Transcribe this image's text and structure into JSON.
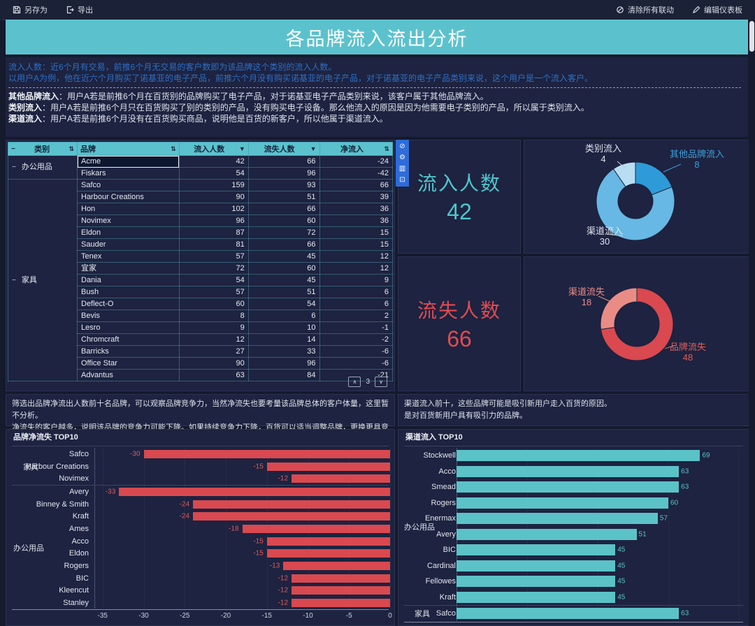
{
  "toolbar": {
    "save_as": "另存为",
    "export": "导出",
    "clear_linkage": "清除所有联动",
    "edit_dashboard": "编辑仪表板"
  },
  "banner": {
    "title": "各品牌流入流出分析"
  },
  "description": {
    "blue_lines": [
      "流入人数：近6个月有交易，前推6个月无交易的客户数即为该品牌这个类别的流入人数。",
      "以用户A为例，他在近六个月购买了诺基亚的电子产品，前推六个月没有购买诺基亚的电子产品，对于诺基亚的电子产品类别来说，这个用户是一个流入客户。"
    ],
    "definitions": [
      {
        "term": "其他品牌流入",
        "text": "：用户A若是前推6个月在百货别的品牌购买了电子产品，对于诺基亚电子产品类别来说，该客户属于其他品牌流入。"
      },
      {
        "term": "类别流入",
        "text": "：用户A若是前推6个月只在百货购买了别的类别的产品，没有购买电子设备。那么他流入的原因是因为他需要电子类别的产品，所以属于类别流入。"
      },
      {
        "term": "渠道流入",
        "text": "：用户A若是前推6个月没有在百货购买商品，说明他是百货的新客户，所以他属于渠道流入。"
      }
    ]
  },
  "icons": {
    "sort": "⇅",
    "filter": "▼",
    "collapse": "−",
    "page_up": "∧",
    "page_down": "∨"
  },
  "widget_toolbar": {
    "icons": [
      {
        "name": "no-link-icon",
        "glyph": "⊘"
      },
      {
        "name": "gear-icon",
        "glyph": "⚙"
      },
      {
        "name": "data-columns-icon",
        "glyph": "▥"
      },
      {
        "name": "collapse-box-icon",
        "glyph": "⊡"
      }
    ]
  },
  "table": {
    "headers": [
      "类别",
      "品牌",
      "流入人数",
      "流失人数",
      "净流入"
    ],
    "selected_cell": "Acme",
    "pagination": {
      "page": "3"
    },
    "groups": [
      {
        "name": "办公用品",
        "rows": [
          [
            "Acme",
            42,
            66,
            -24
          ],
          [
            "Fiskars",
            54,
            96,
            -42
          ]
        ]
      },
      {
        "name": "家具",
        "rows": [
          [
            "Safco",
            159,
            93,
            66
          ],
          [
            "Harbour Creations",
            90,
            51,
            39
          ],
          [
            "Hon",
            102,
            66,
            36
          ],
          [
            "Novimex",
            96,
            60,
            36
          ],
          [
            "Eldon",
            87,
            72,
            15
          ],
          [
            "Sauder",
            81,
            66,
            15
          ],
          [
            "Tenex",
            57,
            45,
            12
          ],
          [
            "宜家",
            72,
            60,
            12
          ],
          [
            "Dania",
            54,
            45,
            9
          ],
          [
            "Bush",
            57,
            51,
            6
          ],
          [
            "Deflect-O",
            60,
            54,
            6
          ],
          [
            "Bevis",
            8,
            6,
            2
          ],
          [
            "Lesro",
            9,
            10,
            -1
          ],
          [
            "Chromcraft",
            12,
            14,
            -2
          ],
          [
            "Barricks",
            27,
            33,
            -6
          ],
          [
            "Office Star",
            90,
            96,
            -6
          ],
          [
            "Advantus",
            63,
            84,
            -21
          ]
        ]
      }
    ]
  },
  "kpi": {
    "inflow": {
      "label": "流入人数",
      "value": "42",
      "color": "#4fc6cd"
    },
    "outflow": {
      "label": "流失人数",
      "value": "66",
      "color": "#e24b50"
    }
  },
  "notes": {
    "left": [
      "筛选出品牌净流出人数前十名品牌，可以观察品牌竞争力，当然净流失也要考量该品牌总体的客户体量，这里暂不分析。",
      "净流失的客户越多，说明该品牌的竞争力可能下降。如果持续竞争力下降，百货可以适当调整品牌，更换更具竞争力的品牌。"
    ],
    "right": [
      "渠道流入前十，这些品牌可能是吸引新用户走入百货的原因。",
      "是对百货新用户具有吸引力的品牌。"
    ]
  },
  "colors": {
    "accent_teal": "#5bc2cd",
    "negative_red": "#d9494f",
    "link_blue": "#2e6fc4",
    "widget_toolbar_blue": "#2e6cd9"
  },
  "chart_data": [
    {
      "type": "pie",
      "name": "inflow-breakdown-donut",
      "total": 42,
      "start": "top, clockwise",
      "legend_position": "none",
      "segments": [
        {
          "label": "其他品牌流入",
          "value": 8,
          "color": "#2e9bd8",
          "label_color": "#3aa0dc"
        },
        {
          "label": "渠道流入",
          "value": 30,
          "color": "#67b8e4",
          "label_color": "#dfe3ec"
        },
        {
          "label": "类别流入",
          "value": 4,
          "color": "#b9ddf1",
          "label_color": "#dfe3ec"
        }
      ]
    },
    {
      "type": "pie",
      "name": "loss-breakdown-donut",
      "total": 66,
      "start": "top, clockwise",
      "legend_position": "none",
      "segments": [
        {
          "label": "品牌流失",
          "value": 48,
          "color": "#d9494f",
          "label_color": "#de5f5c"
        },
        {
          "label": "渠道流失",
          "value": 18,
          "color": "#ea8c86",
          "label_color": "#ea8c86"
        }
      ]
    },
    {
      "type": "bar",
      "orientation": "horizontal",
      "title": "品牌净流失 TOP10",
      "xlim": [
        -35,
        0
      ],
      "ticks": [
        -35,
        -30,
        -25,
        -20,
        -15,
        -10,
        -5,
        0
      ],
      "grid": "on",
      "bar_color": "#d9494f",
      "value_color": "#e05b5b",
      "groups": [
        {
          "name": "家具",
          "rows": [
            {
              "label": "Safco",
              "value": -30
            },
            {
              "label": "Harbour Creations",
              "value": -15
            },
            {
              "label": "Novimex",
              "value": -12
            }
          ]
        },
        {
          "name": "办公用品",
          "rows": [
            {
              "label": "Avery",
              "value": -33
            },
            {
              "label": "Binney & Smith",
              "value": -24
            },
            {
              "label": "Kraft",
              "value": -24
            },
            {
              "label": "Ames",
              "value": -18
            },
            {
              "label": "Acco",
              "value": -15
            },
            {
              "label": "Eldon",
              "value": -15
            },
            {
              "label": "Rogers",
              "value": -13
            },
            {
              "label": "BIC",
              "value": -12
            },
            {
              "label": "Kleencut",
              "value": -12
            },
            {
              "label": "Stanley",
              "value": -12
            }
          ]
        }
      ]
    },
    {
      "type": "bar",
      "orientation": "horizontal",
      "title": "渠道流入 TOP10",
      "xlim": [
        0,
        80
      ],
      "ticks": [],
      "grid": "on",
      "bar_color": "#5bc2c8",
      "value_color": "#5bc2c8",
      "groups": [
        {
          "name": "办公用品",
          "rows": [
            {
              "label": "Stockwell",
              "value": 69
            },
            {
              "label": "Acco",
              "value": 63
            },
            {
              "label": "Smead",
              "value": 63
            },
            {
              "label": "Rogers",
              "value": 60
            },
            {
              "label": "Enermax",
              "value": 57
            },
            {
              "label": "Avery",
              "value": 51
            },
            {
              "label": "BIC",
              "value": 45
            },
            {
              "label": "Cardinal",
              "value": 45
            },
            {
              "label": "Fellowes",
              "value": 45
            },
            {
              "label": "Kraft",
              "value": 45
            }
          ]
        },
        {
          "name": "家具",
          "rows": [
            {
              "label": "Safco",
              "value": 63
            }
          ]
        }
      ]
    }
  ]
}
